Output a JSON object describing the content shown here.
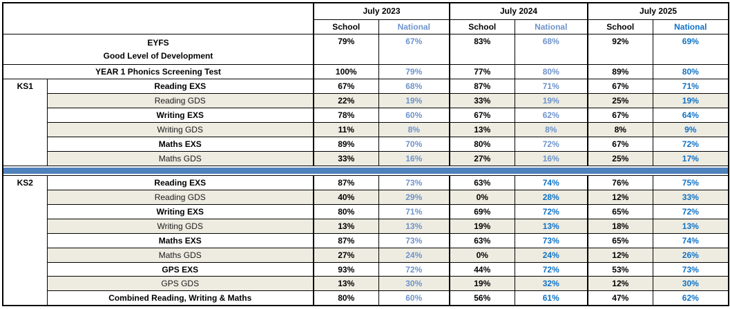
{
  "header": {
    "years": [
      "July 2023",
      "July 2024",
      "July 2025"
    ],
    "school_label": "School",
    "national_label": "National"
  },
  "colors": {
    "national_light": "#6E93CB",
    "national_bright": "#0F72C6",
    "divider_blue": "#4F81BD",
    "row_tint": "#EEECE1",
    "border": "#000000"
  },
  "eyfs": {
    "title": "EYFS",
    "subtitle": "Good Level of Development",
    "values": [
      "79%",
      "67%",
      "83%",
      "68%",
      "92%",
      "69%"
    ]
  },
  "phonics": {
    "label": "YEAR 1 Phonics Screening Test",
    "values": [
      "100%",
      "79%",
      "77%",
      "80%",
      "89%",
      "80%"
    ]
  },
  "ks1": {
    "label": "KS1",
    "rows": [
      {
        "label": "Reading EXS",
        "values": [
          "67%",
          "68%",
          "87%",
          "71%",
          "67%",
          "71%"
        ]
      },
      {
        "label": "Reading GDS",
        "values": [
          "22%",
          "19%",
          "33%",
          "19%",
          "25%",
          "19%"
        ]
      },
      {
        "label": "Writing EXS",
        "values": [
          "78%",
          "60%",
          "67%",
          "62%",
          "67%",
          "64%"
        ]
      },
      {
        "label": "Writing GDS",
        "values": [
          "11%",
          "8%",
          "13%",
          "8%",
          "8%",
          "9%"
        ]
      },
      {
        "label": "Maths EXS",
        "values": [
          "89%",
          "70%",
          "80%",
          "72%",
          "67%",
          "72%"
        ]
      },
      {
        "label": "Maths GDS",
        "values": [
          "33%",
          "16%",
          "27%",
          "16%",
          "25%",
          "17%"
        ]
      }
    ]
  },
  "ks2": {
    "label": "KS2",
    "rows": [
      {
        "label": "Reading EXS",
        "values": [
          "87%",
          "73%",
          "63%",
          "74%",
          "76%",
          "75%"
        ]
      },
      {
        "label": "Reading GDS",
        "values": [
          "40%",
          "29%",
          "0%",
          "28%",
          "12%",
          "33%"
        ]
      },
      {
        "label": "Writing EXS",
        "values": [
          "80%",
          "71%",
          "69%",
          "72%",
          "65%",
          "72%"
        ]
      },
      {
        "label": "Writing GDS",
        "values": [
          "13%",
          "13%",
          "19%",
          "13%",
          "18%",
          "13%"
        ]
      },
      {
        "label": "Maths EXS",
        "values": [
          "87%",
          "73%",
          "63%",
          "73%",
          "65%",
          "74%"
        ]
      },
      {
        "label": "Maths GDS",
        "values": [
          "27%",
          "24%",
          "0%",
          "24%",
          "12%",
          "26%"
        ]
      },
      {
        "label": "GPS EXS",
        "values": [
          "93%",
          "72%",
          "44%",
          "72%",
          "53%",
          "73%"
        ]
      },
      {
        "label": "GPS GDS",
        "values": [
          "13%",
          "30%",
          "19%",
          "32%",
          "12%",
          "30%"
        ]
      },
      {
        "label": "Combined Reading, Writing & Maths",
        "values": [
          "80%",
          "60%",
          "56%",
          "61%",
          "47%",
          "62%"
        ]
      }
    ]
  },
  "chart_data": {
    "type": "table",
    "units": "%",
    "columns": [
      "July 2023 School",
      "July 2023 National",
      "July 2024 School",
      "July 2024 National",
      "July 2025 School",
      "July 2025 National"
    ],
    "rows": [
      {
        "section": "EYFS",
        "label": "EYFS Good Level of Development",
        "values": [
          79,
          67,
          83,
          68,
          92,
          69
        ]
      },
      {
        "section": "Year 1",
        "label": "YEAR 1 Phonics Screening Test",
        "values": [
          100,
          79,
          77,
          80,
          89,
          80
        ]
      },
      {
        "section": "KS1",
        "label": "Reading EXS",
        "values": [
          67,
          68,
          87,
          71,
          67,
          71
        ]
      },
      {
        "section": "KS1",
        "label": "Reading GDS",
        "values": [
          22,
          19,
          33,
          19,
          25,
          19
        ]
      },
      {
        "section": "KS1",
        "label": "Writing EXS",
        "values": [
          78,
          60,
          67,
          62,
          67,
          64
        ]
      },
      {
        "section": "KS1",
        "label": "Writing GDS",
        "values": [
          11,
          8,
          13,
          8,
          8,
          9
        ]
      },
      {
        "section": "KS1",
        "label": "Maths EXS",
        "values": [
          89,
          70,
          80,
          72,
          67,
          72
        ]
      },
      {
        "section": "KS1",
        "label": "Maths GDS",
        "values": [
          33,
          16,
          27,
          16,
          25,
          17
        ]
      },
      {
        "section": "KS2",
        "label": "Reading EXS",
        "values": [
          87,
          73,
          63,
          74,
          76,
          75
        ]
      },
      {
        "section": "KS2",
        "label": "Reading GDS",
        "values": [
          40,
          29,
          0,
          28,
          12,
          33
        ]
      },
      {
        "section": "KS2",
        "label": "Writing EXS",
        "values": [
          80,
          71,
          69,
          72,
          65,
          72
        ]
      },
      {
        "section": "KS2",
        "label": "Writing GDS",
        "values": [
          13,
          13,
          19,
          13,
          18,
          13
        ]
      },
      {
        "section": "KS2",
        "label": "Maths EXS",
        "values": [
          87,
          73,
          63,
          73,
          65,
          74
        ]
      },
      {
        "section": "KS2",
        "label": "Maths GDS",
        "values": [
          27,
          24,
          0,
          24,
          12,
          26
        ]
      },
      {
        "section": "KS2",
        "label": "GPS EXS",
        "values": [
          93,
          72,
          44,
          72,
          53,
          73
        ]
      },
      {
        "section": "KS2",
        "label": "GPS GDS",
        "values": [
          13,
          30,
          19,
          32,
          12,
          30
        ]
      },
      {
        "section": "KS2",
        "label": "Combined Reading, Writing & Maths",
        "values": [
          80,
          60,
          56,
          61,
          47,
          62
        ]
      }
    ]
  }
}
